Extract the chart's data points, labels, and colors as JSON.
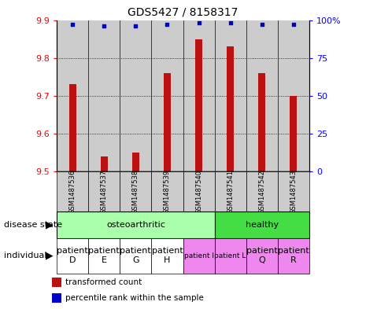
{
  "title": "GDS5427 / 8158317",
  "samples": [
    "GSM1487536",
    "GSM1487537",
    "GSM1487538",
    "GSM1487539",
    "GSM1487540",
    "GSM1487541",
    "GSM1487542",
    "GSM1487543"
  ],
  "red_values": [
    9.73,
    9.54,
    9.55,
    9.76,
    9.85,
    9.83,
    9.76,
    9.7
  ],
  "blue_values": [
    97,
    96,
    96,
    97,
    98,
    98,
    97,
    97
  ],
  "ylim_left": [
    9.5,
    9.9
  ],
  "ylim_right": [
    0,
    100
  ],
  "yticks_left": [
    9.5,
    9.6,
    9.7,
    9.8,
    9.9
  ],
  "yticks_right": [
    0,
    25,
    50,
    75,
    100
  ],
  "ytick_labels_right": [
    "0",
    "25",
    "50",
    "75",
    "100%"
  ],
  "oa_samples": 5,
  "healthy_samples": 3,
  "disease_label_oa": "osteoarthritic",
  "disease_label_h": "healthy",
  "disease_color_oa": "#aaffaa",
  "disease_color_h": "#44dd44",
  "individual_labels": [
    "patient\nD",
    "patient\nE",
    "patient\nG",
    "patient\nH",
    "patient I",
    "patient L",
    "patient\nQ",
    "patient\nR"
  ],
  "individual_fontsizes": [
    8,
    8,
    8,
    8,
    6.5,
    6.5,
    8,
    8
  ],
  "individual_colors_oa": "#ffffff",
  "individual_colors_h": "#ee88ee",
  "individual_split": 4,
  "bar_color": "#bb1111",
  "dot_color": "#0000cc",
  "bg_color": "#cccccc",
  "legend_red": "transformed count",
  "legend_blue": "percentile rank within the sample",
  "label_disease_state": "disease state",
  "label_individual": "individual"
}
